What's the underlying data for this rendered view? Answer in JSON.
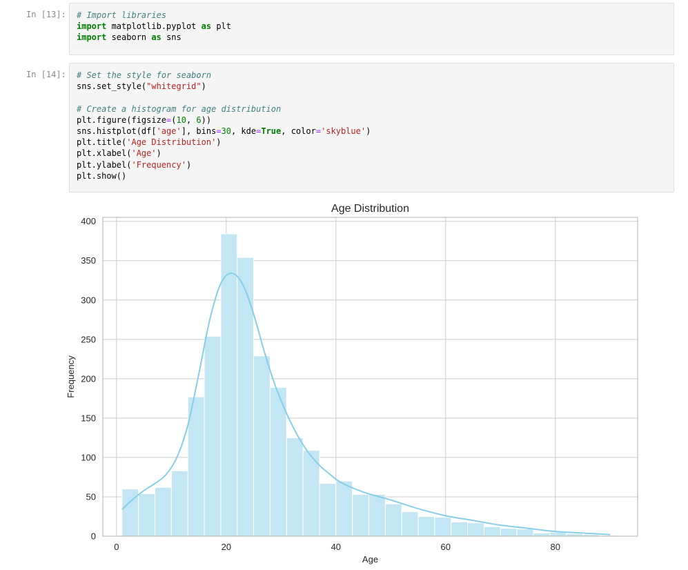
{
  "cells": [
    {
      "prompt": "In [13]:",
      "lines": [
        [
          {
            "t": "# Import libraries",
            "c": "cmt"
          }
        ],
        [
          {
            "t": "import",
            "c": "kw"
          },
          {
            "t": " matplotlib.pyplot ",
            "c": ""
          },
          {
            "t": "as",
            "c": "kw"
          },
          {
            "t": " plt",
            "c": ""
          }
        ],
        [
          {
            "t": "import",
            "c": "kw"
          },
          {
            "t": " seaborn ",
            "c": ""
          },
          {
            "t": "as",
            "c": "kw"
          },
          {
            "t": " sns",
            "c": ""
          }
        ]
      ]
    },
    {
      "prompt": "In [14]:",
      "lines": [
        [
          {
            "t": "# Set the style for seaborn",
            "c": "cmt"
          }
        ],
        [
          {
            "t": "sns.set_style(",
            "c": ""
          },
          {
            "t": "\"whitegrid\"",
            "c": "str"
          },
          {
            "t": ")",
            "c": ""
          }
        ],
        [
          {
            "t": "",
            "c": ""
          }
        ],
        [
          {
            "t": "# Create a histogram for age distribution",
            "c": "cmt"
          }
        ],
        [
          {
            "t": "plt.figure(figsize",
            "c": ""
          },
          {
            "t": "=",
            "c": "op"
          },
          {
            "t": "(",
            "c": ""
          },
          {
            "t": "10",
            "c": "num"
          },
          {
            "t": ", ",
            "c": ""
          },
          {
            "t": "6",
            "c": "num"
          },
          {
            "t": "))",
            "c": ""
          }
        ],
        [
          {
            "t": "sns.histplot(df[",
            "c": ""
          },
          {
            "t": "'age'",
            "c": "str"
          },
          {
            "t": "], bins",
            "c": ""
          },
          {
            "t": "=",
            "c": "op"
          },
          {
            "t": "30",
            "c": "num"
          },
          {
            "t": ", kde",
            "c": ""
          },
          {
            "t": "=",
            "c": "op"
          },
          {
            "t": "True",
            "c": "kw"
          },
          {
            "t": ", color",
            "c": ""
          },
          {
            "t": "=",
            "c": "op"
          },
          {
            "t": "'skyblue'",
            "c": "str"
          },
          {
            "t": ")",
            "c": ""
          }
        ],
        [
          {
            "t": "plt.title(",
            "c": ""
          },
          {
            "t": "'Age Distribution'",
            "c": "str"
          },
          {
            "t": ")",
            "c": ""
          }
        ],
        [
          {
            "t": "plt.xlabel(",
            "c": ""
          },
          {
            "t": "'Age'",
            "c": "str"
          },
          {
            "t": ")",
            "c": ""
          }
        ],
        [
          {
            "t": "plt.ylabel(",
            "c": ""
          },
          {
            "t": "'Frequency'",
            "c": "str"
          },
          {
            "t": ")",
            "c": ""
          }
        ],
        [
          {
            "t": "plt.show()",
            "c": ""
          }
        ]
      ]
    }
  ],
  "chart_data": {
    "type": "bar",
    "title": "Age Distribution",
    "xlabel": "Age",
    "ylabel": "Frequency",
    "xlim": [
      -2.5,
      95
    ],
    "ylim": [
      0,
      405
    ],
    "xticks": [
      0,
      20,
      40,
      60,
      80
    ],
    "yticks": [
      0,
      50,
      100,
      150,
      200,
      250,
      300,
      350,
      400
    ],
    "grid": true,
    "bin_start": 1,
    "bin_width": 3,
    "values": [
      60,
      54,
      62,
      83,
      177,
      254,
      384,
      354,
      229,
      189,
      125,
      109,
      67,
      70,
      53,
      53,
      41,
      31,
      25,
      24,
      18,
      17,
      12,
      10,
      9,
      4,
      5,
      3,
      2,
      1
    ],
    "kde": {
      "x": [
        1,
        3,
        5,
        7,
        9,
        11,
        13,
        15,
        17,
        19,
        21,
        23,
        25,
        27,
        29,
        31,
        33,
        35,
        37,
        39,
        41,
        45,
        50,
        55,
        60,
        65,
        70,
        75,
        80,
        85,
        90
      ],
      "y": [
        34,
        47,
        58,
        67,
        78,
        100,
        141,
        206,
        275,
        321,
        334,
        320,
        282,
        233,
        190,
        156,
        128,
        106,
        90,
        78,
        68,
        56,
        46,
        35,
        26,
        20,
        14,
        10,
        6,
        4,
        2
      ]
    },
    "colors": {
      "bar": "#87ceeb",
      "bar_fill": "#c3e6f4",
      "kde": "#87ceeb",
      "grid": "#cccccc",
      "axes": "#b0b0b0",
      "text": "#262626"
    }
  }
}
